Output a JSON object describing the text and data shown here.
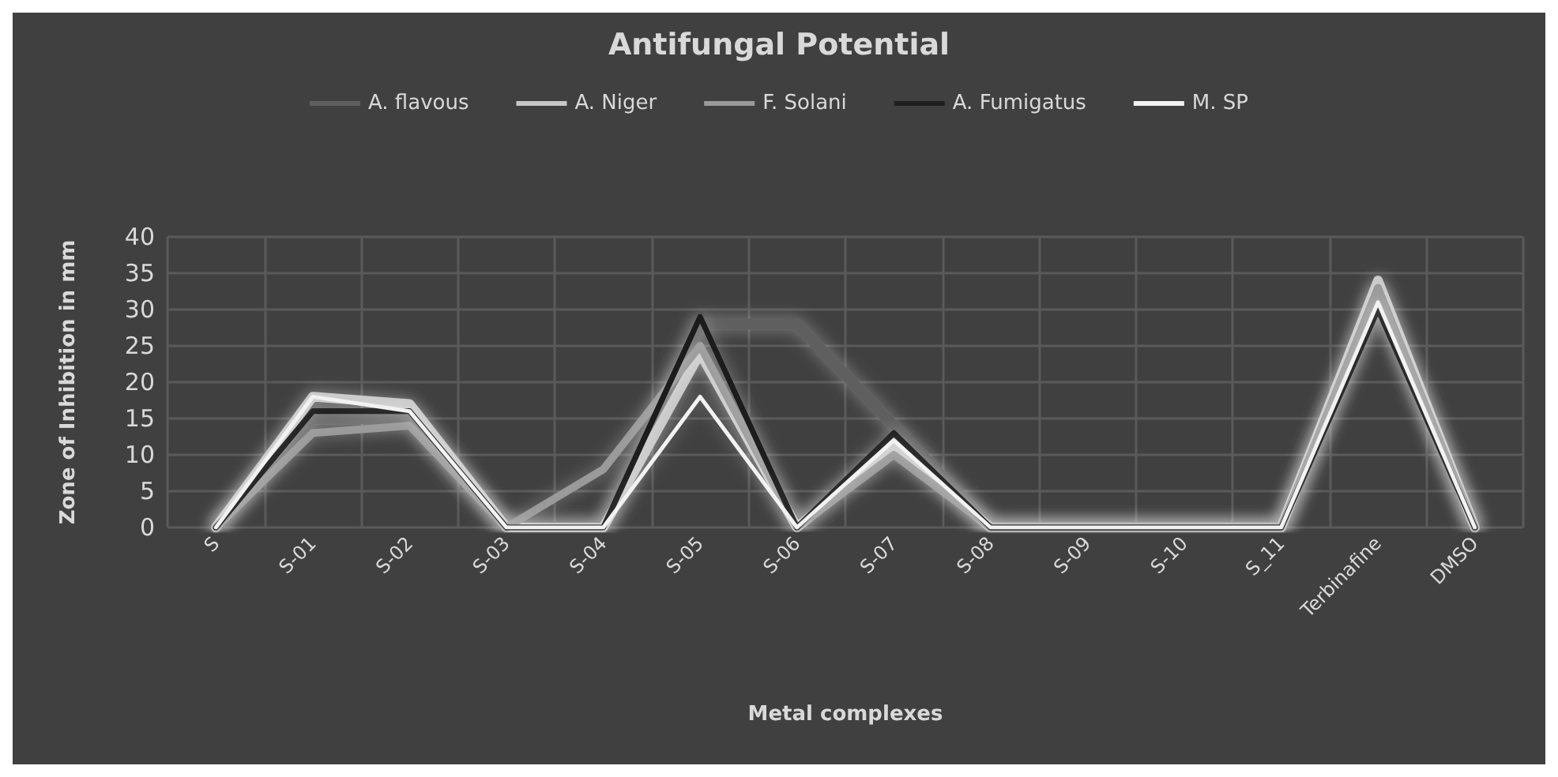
{
  "chart_data": {
    "type": "line",
    "title": "Antifungal Potential",
    "xlabel": "Metal complexes",
    "ylabel": "Zone of Inhibition in mm",
    "categories": [
      "S",
      "S-01",
      "S-02",
      "S-03",
      "S-04",
      "S-05",
      "S-06",
      "S-07",
      "S-08",
      "S-09",
      "S-10",
      "S_11",
      "Terbinafine",
      "DMSO"
    ],
    "series": [
      {
        "name": "A. flavous",
        "color": "#5e5e5e",
        "values": [
          0,
          15,
          15,
          0,
          0,
          28,
          28,
          14,
          0,
          0,
          0,
          0,
          32,
          0
        ]
      },
      {
        "name": "A. Niger",
        "color": "#c8c8c8",
        "values": [
          0,
          18,
          17,
          0,
          0,
          24,
          0,
          11,
          0,
          0,
          0,
          0,
          34,
          0
        ]
      },
      {
        "name": "F. Solani",
        "color": "#9a9a9a",
        "values": [
          0,
          13,
          14,
          0,
          8,
          25,
          0,
          10,
          0,
          0,
          0,
          0,
          33,
          0
        ]
      },
      {
        "name": "A. Fumigatus",
        "color": "#1e1e1e",
        "values": [
          0,
          16,
          16,
          0,
          0,
          29,
          0,
          13,
          0,
          0,
          0,
          0,
          30,
          0
        ]
      },
      {
        "name": "M. SP",
        "color": "#f2f2f2",
        "values": [
          0,
          18,
          16,
          0,
          0,
          18,
          0,
          12,
          0,
          0,
          0,
          0,
          31,
          0
        ]
      }
    ],
    "ylim": [
      0,
      40
    ],
    "yticks": [
      0,
      5,
      10,
      15,
      20,
      25,
      30,
      35,
      40
    ],
    "grid": true,
    "legend": "top",
    "marker": "none",
    "line_style": "solid"
  }
}
